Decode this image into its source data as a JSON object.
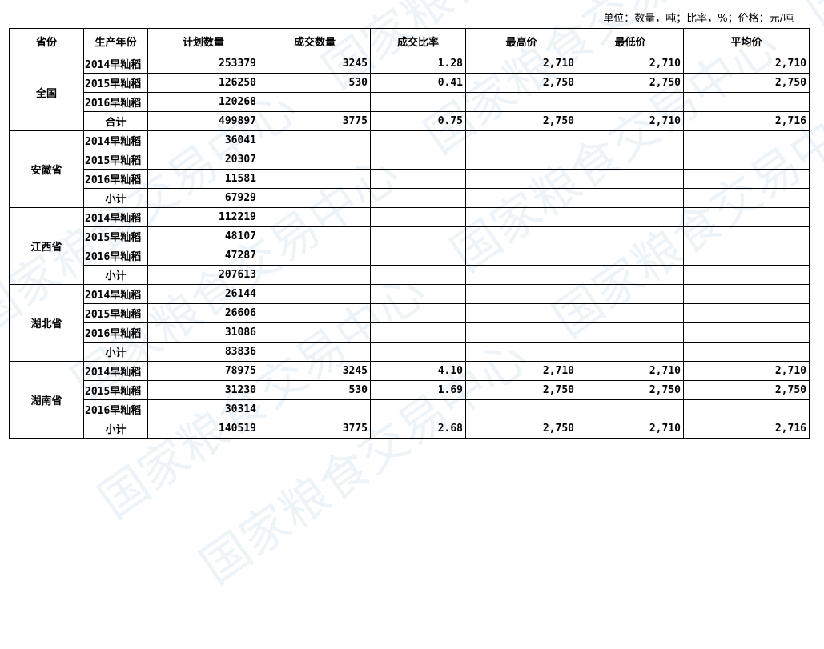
{
  "unit_note": "单位：数量，吨；比率，%；价格：元/吨",
  "columns": [
    "省份",
    "生产年份",
    "计划数量",
    "成交数量",
    "成交比率",
    "最高价",
    "最低价",
    "平均价"
  ],
  "provinces": [
    {
      "name": "全国",
      "rows": [
        [
          "2014早籼稻",
          "253379",
          "3245",
          "1.28",
          "2,710",
          "2,710",
          "2,710"
        ],
        [
          "2015早籼稻",
          "126250",
          "530",
          "0.41",
          "2,750",
          "2,750",
          "2,750"
        ],
        [
          "2016早籼稻",
          "120268",
          "",
          "",
          "",
          "",
          ""
        ],
        [
          "合计",
          "499897",
          "3775",
          "0.75",
          "2,750",
          "2,710",
          "2,716"
        ]
      ]
    },
    {
      "name": "安徽省",
      "rows": [
        [
          "2014早籼稻",
          "36041",
          "",
          "",
          "",
          "",
          ""
        ],
        [
          "2015早籼稻",
          "20307",
          "",
          "",
          "",
          "",
          ""
        ],
        [
          "2016早籼稻",
          "11581",
          "",
          "",
          "",
          "",
          ""
        ],
        [
          "小计",
          "67929",
          "",
          "",
          "",
          "",
          ""
        ]
      ]
    },
    {
      "name": "江西省",
      "rows": [
        [
          "2014早籼稻",
          "112219",
          "",
          "",
          "",
          "",
          ""
        ],
        [
          "2015早籼稻",
          "48107",
          "",
          "",
          "",
          "",
          ""
        ],
        [
          "2016早籼稻",
          "47287",
          "",
          "",
          "",
          "",
          ""
        ],
        [
          "小计",
          "207613",
          "",
          "",
          "",
          "",
          ""
        ]
      ]
    },
    {
      "name": "湖北省",
      "rows": [
        [
          "2014早籼稻",
          "26144",
          "",
          "",
          "",
          "",
          ""
        ],
        [
          "2015早籼稻",
          "26606",
          "",
          "",
          "",
          "",
          ""
        ],
        [
          "2016早籼稻",
          "31086",
          "",
          "",
          "",
          "",
          ""
        ],
        [
          "小计",
          "83836",
          "",
          "",
          "",
          "",
          ""
        ]
      ]
    },
    {
      "name": "湖南省",
      "rows": [
        [
          "2014早籼稻",
          "78975",
          "3245",
          "4.10",
          "2,710",
          "2,710",
          "2,710"
        ],
        [
          "2015早籼稻",
          "31230",
          "530",
          "1.69",
          "2,750",
          "2,750",
          "2,750"
        ],
        [
          "2016早籼稻",
          "30314",
          "",
          "",
          "",
          "",
          ""
        ],
        [
          "小计",
          "140519",
          "3775",
          "2.68",
          "2,750",
          "2,710",
          "2,716"
        ]
      ]
    }
  ]
}
